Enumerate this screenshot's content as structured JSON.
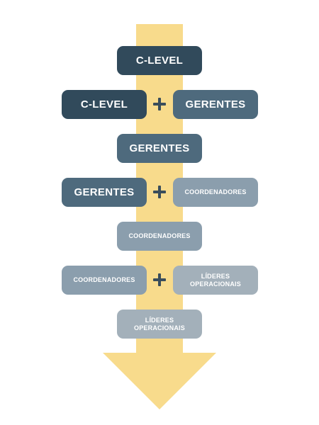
{
  "colors": {
    "arrow": "#f8db8c",
    "level_1": "#314a5b",
    "level_2": "#4e6a7d",
    "level_3": "#8b9ead",
    "level_4": "#a3b0ba",
    "plus": "#3a4d5b",
    "text": "#ffffff"
  },
  "steps": [
    {
      "single": "C-LEVEL"
    },
    {
      "left": "C-LEVEL",
      "right": "GERENTES"
    },
    {
      "single": "GERENTES"
    },
    {
      "left": "GERENTES",
      "right": "COORDENADORES"
    },
    {
      "single": "COORDENADORES"
    },
    {
      "left": "COORDENADORES",
      "right": "LÍDERES\nOPERACIONAIS"
    },
    {
      "single": "LÍDERES\nOPERACIONAIS"
    }
  ],
  "icons": {
    "plus": "plus-icon",
    "arrow": "down-arrow-icon"
  }
}
